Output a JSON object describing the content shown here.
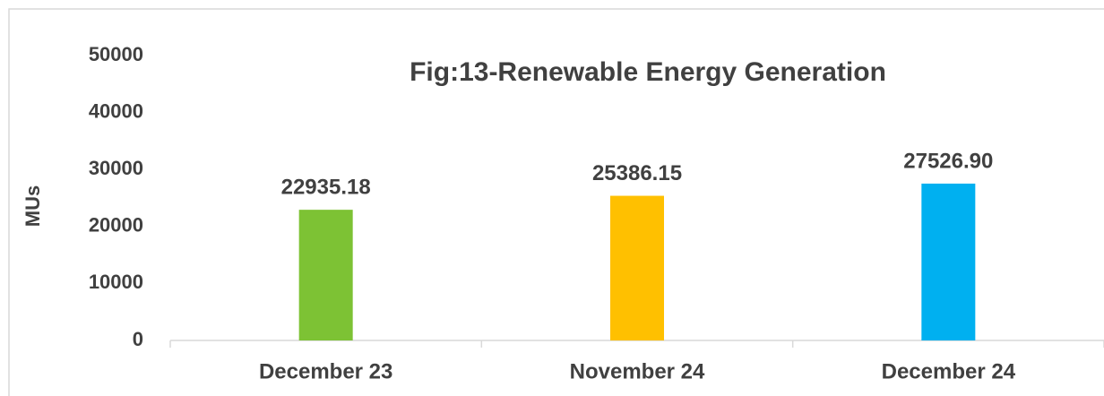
{
  "chart_data": {
    "type": "bar",
    "title": "Fig:13-Renewable Energy Generation",
    "ylabel": "MUs",
    "categories": [
      "December 23",
      "November 24",
      "December 24"
    ],
    "values": [
      22935.18,
      25386.15,
      27526.9
    ],
    "value_labels": [
      "22935.18",
      "25386.15",
      "27526.90"
    ],
    "colors": [
      "#7dc234",
      "#ffc000",
      "#00b0f0"
    ],
    "ylim": [
      0,
      50000
    ],
    "yticks": [
      0,
      10000,
      20000,
      30000,
      40000,
      50000
    ],
    "grid": false
  }
}
